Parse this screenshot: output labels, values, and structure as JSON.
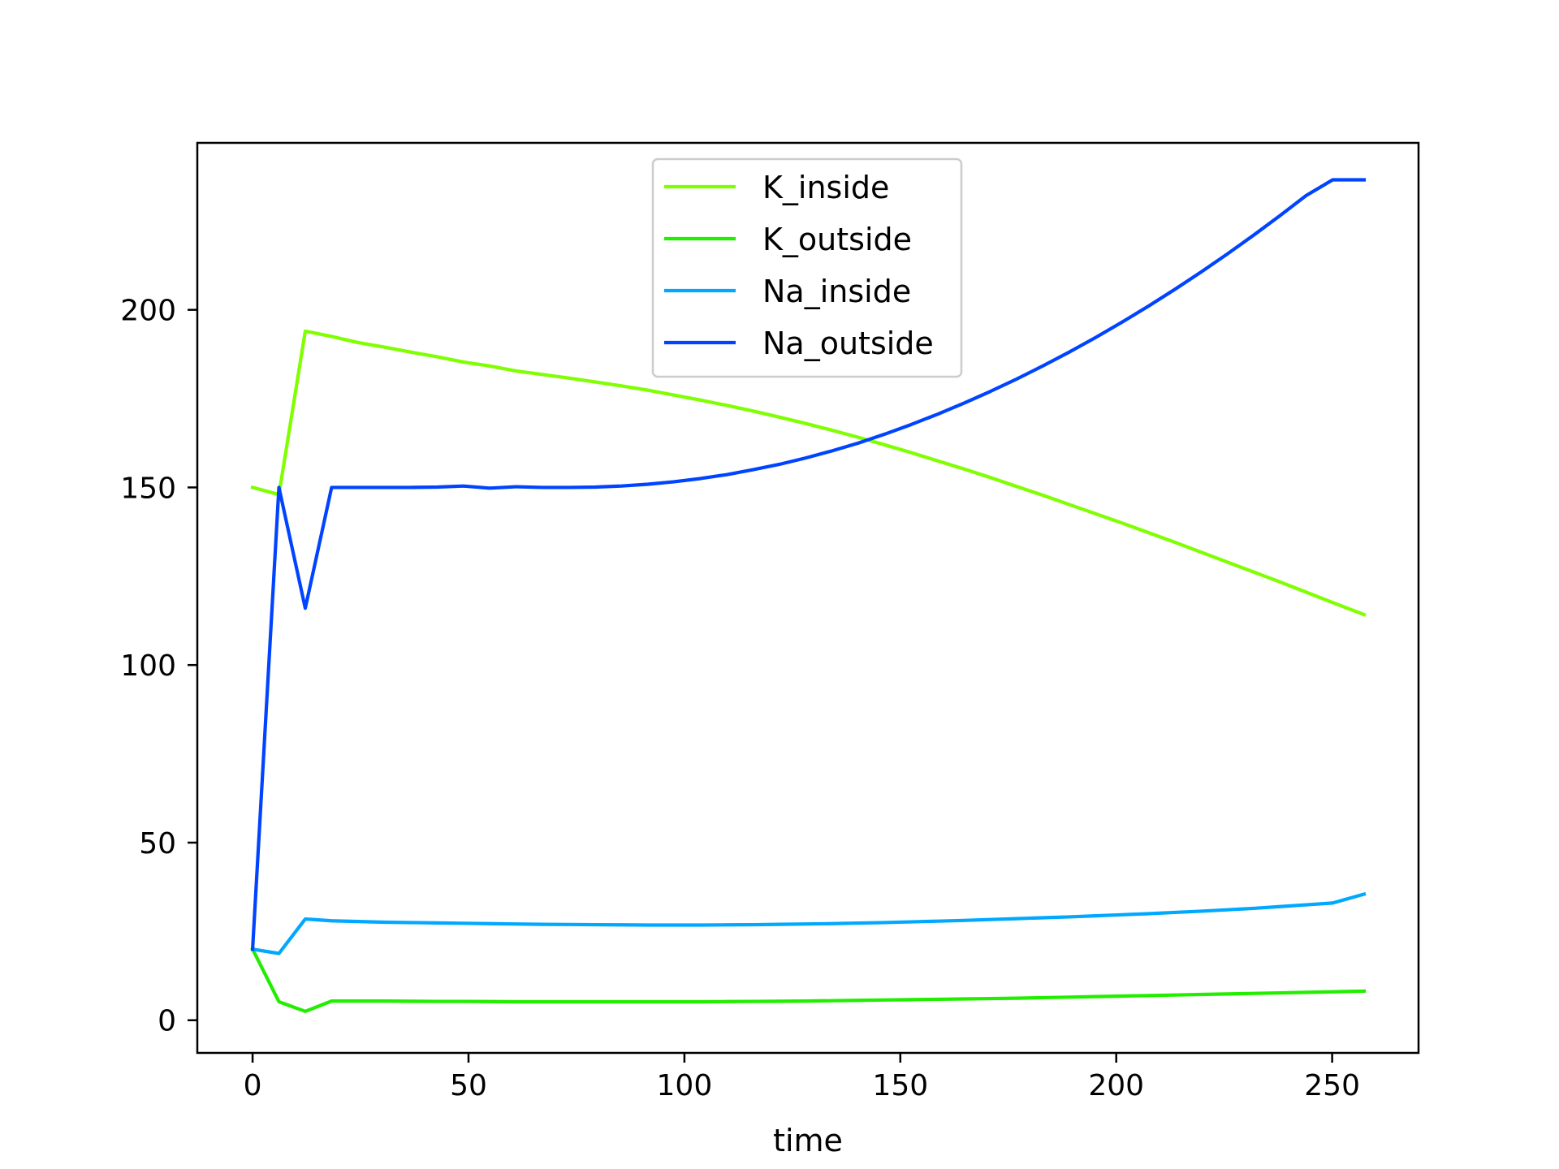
{
  "chart_data": {
    "type": "line",
    "title": "",
    "xlabel": "time",
    "ylabel": "",
    "xlim": [
      -12.8,
      270
    ],
    "ylim": [
      -9.2,
      247
    ],
    "x_ticks": [
      0,
      50,
      100,
      150,
      200,
      250
    ],
    "y_ticks": [
      0,
      50,
      100,
      150,
      200
    ],
    "grid": false,
    "legend_position": "upper-center",
    "x": [
      0,
      6.1,
      12.2,
      18.3,
      24.4,
      30.5,
      36.6,
      42.7,
      48.8,
      54.9,
      61.0,
      67.1,
      73.2,
      79.3,
      85.4,
      91.5,
      97.6,
      103.7,
      109.8,
      115.9,
      122.0,
      128.1,
      134.2,
      140.3,
      146.4,
      152.5,
      158.6,
      164.7,
      170.8,
      176.9,
      183.0,
      189.1,
      195.2,
      201.3,
      207.4,
      213.5,
      219.6,
      225.7,
      231.8,
      237.9,
      244.0,
      250.1,
      257.4
    ],
    "series": [
      {
        "name": "K_inside",
        "color": "#7fff00",
        "values": [
          150,
          148,
          194,
          192.5,
          190.8,
          189.5,
          188.1,
          186.8,
          185.3,
          184.2,
          182.8,
          181.8,
          180.8,
          179.7,
          178.6,
          177.4,
          176.0,
          174.6,
          173.1,
          171.5,
          169.8,
          168.0,
          166.1,
          164.1,
          162.0,
          159.8,
          157.5,
          155.2,
          152.8,
          150.3,
          147.8,
          145.2,
          142.6,
          140.0,
          137.3,
          134.6,
          131.8,
          129.0,
          126.2,
          123.4,
          120.5,
          117.6,
          114.2
        ]
      },
      {
        "name": "K_outside",
        "color": "#22ee00",
        "values": [
          20,
          5.2,
          2.5,
          5.4,
          5.4,
          5.4,
          5.35,
          5.3,
          5.3,
          5.25,
          5.2,
          5.2,
          5.2,
          5.2,
          5.2,
          5.2,
          5.2,
          5.2,
          5.25,
          5.3,
          5.35,
          5.4,
          5.5,
          5.6,
          5.7,
          5.8,
          5.9,
          6.0,
          6.1,
          6.2,
          6.35,
          6.5,
          6.65,
          6.8,
          6.95,
          7.1,
          7.25,
          7.4,
          7.55,
          7.7,
          7.85,
          8.0,
          8.2
        ]
      },
      {
        "name": "Na_inside",
        "color": "#00a8ff",
        "values": [
          20,
          18.8,
          28.5,
          28.0,
          27.8,
          27.6,
          27.5,
          27.4,
          27.3,
          27.2,
          27.1,
          27.0,
          26.95,
          26.9,
          26.85,
          26.8,
          26.8,
          26.8,
          26.85,
          26.9,
          27.0,
          27.1,
          27.2,
          27.35,
          27.5,
          27.7,
          27.9,
          28.1,
          28.35,
          28.6,
          28.85,
          29.1,
          29.4,
          29.7,
          30.0,
          30.35,
          30.7,
          31.1,
          31.5,
          32.0,
          32.5,
          33.0,
          35.5
        ]
      },
      {
        "name": "Na_outside",
        "color": "#0044ff",
        "values": [
          20,
          150,
          116,
          150,
          150.0,
          150.0,
          150.0,
          150.1,
          150.4,
          149.8,
          150.2,
          150.0,
          150.0,
          150.1,
          150.4,
          150.9,
          151.6,
          152.5,
          153.6,
          155.0,
          156.5,
          158.3,
          160.3,
          162.5,
          165.0,
          167.7,
          170.6,
          173.7,
          177.0,
          180.5,
          184.2,
          188.1,
          192.2,
          196.5,
          201.0,
          205.7,
          210.6,
          215.7,
          221.0,
          226.5,
          232.2,
          236.6,
          236.6
        ]
      }
    ]
  }
}
